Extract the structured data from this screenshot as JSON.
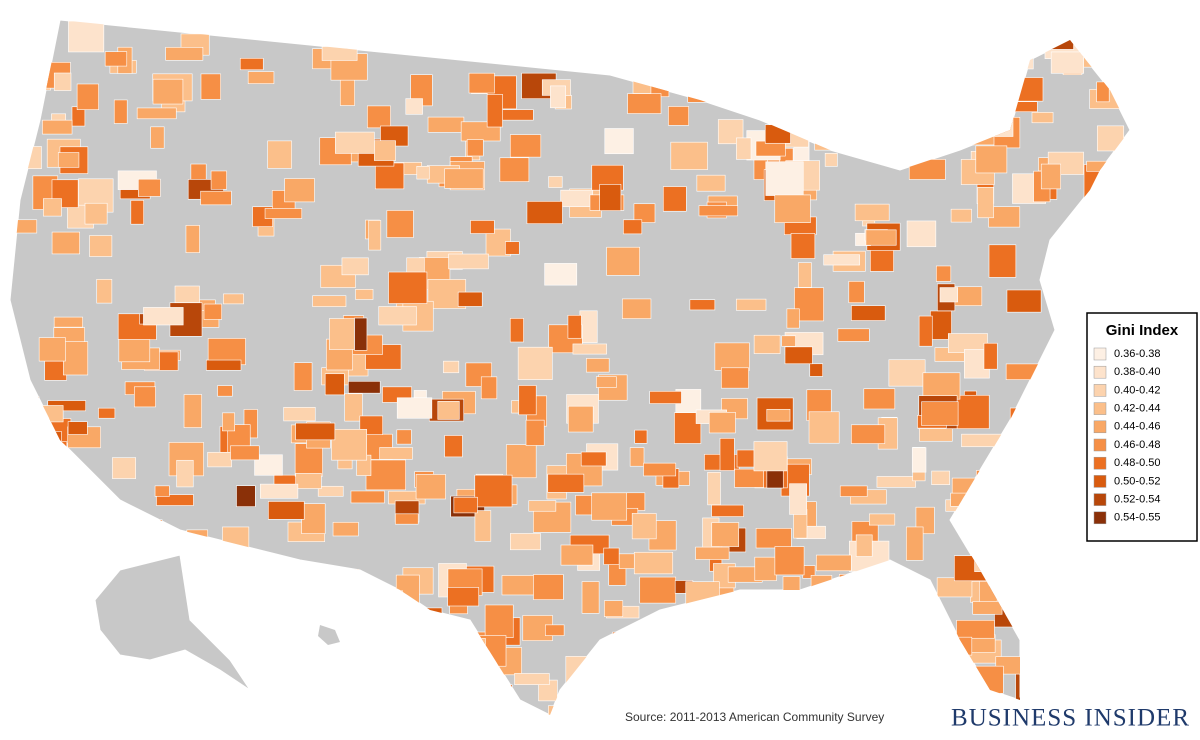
{
  "legend": {
    "title": "Gini Index",
    "items": [
      {
        "label": "0.36-0.38",
        "color": "#fdf0e4"
      },
      {
        "label": "0.38-0.40",
        "color": "#fde3cc"
      },
      {
        "label": "0.40-0.42",
        "color": "#fcd3ae"
      },
      {
        "label": "0.42-0.44",
        "color": "#fbbf8a"
      },
      {
        "label": "0.44-0.46",
        "color": "#f9a866"
      },
      {
        "label": "0.46-0.48",
        "color": "#f68f45"
      },
      {
        "label": "0.48-0.50",
        "color": "#ec7022"
      },
      {
        "label": "0.50-0.52",
        "color": "#d95b0e"
      },
      {
        "label": "0.52-0.54",
        "color": "#b8470a"
      },
      {
        "label": "0.54-0.55",
        "color": "#8a3008"
      }
    ]
  },
  "source": "Source: 2011-2013 American Community Survey",
  "brand": "BUSINESS INSIDER"
}
